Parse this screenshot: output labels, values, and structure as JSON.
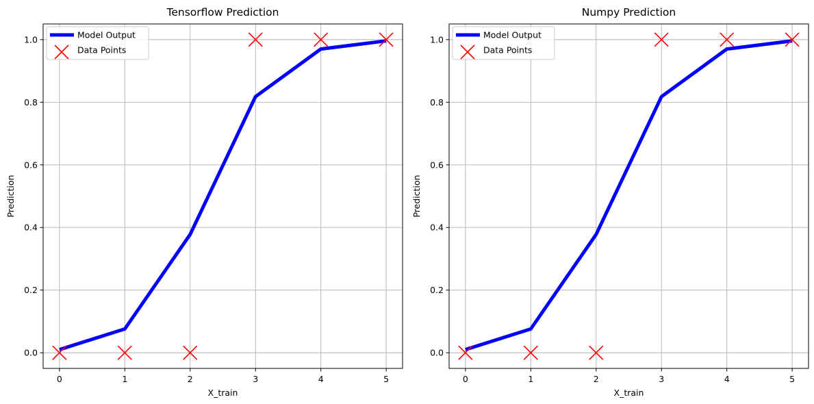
{
  "chart_data": [
    {
      "type": "line",
      "title": "Tensorflow Prediction",
      "xlabel": "X_train",
      "ylabel": "Prediction",
      "xlim": [
        -0.25,
        5.25
      ],
      "ylim": [
        -0.05,
        1.05
      ],
      "xticks": [
        "0",
        "1",
        "2",
        "3",
        "4",
        "5"
      ],
      "yticks": [
        "0.0",
        "0.2",
        "0.4",
        "0.6",
        "0.8",
        "1.0"
      ],
      "grid": true,
      "legend_position": "top-left",
      "series": [
        {
          "name": "Model Output",
          "kind": "line",
          "color": "#0000ff",
          "x": [
            0,
            1,
            2,
            3,
            4,
            5
          ],
          "y": [
            0.01,
            0.076,
            0.378,
            0.818,
            0.97,
            0.996
          ]
        },
        {
          "name": "Data Points",
          "kind": "scatter",
          "marker": "x",
          "color": "#ff0000",
          "x": [
            0,
            1,
            2,
            3,
            4,
            5
          ],
          "y": [
            0,
            0,
            0,
            1,
            1,
            1
          ]
        }
      ]
    },
    {
      "type": "line",
      "title": "Numpy Prediction",
      "xlabel": "X_train",
      "ylabel": "Prediction",
      "xlim": [
        -0.25,
        5.25
      ],
      "ylim": [
        -0.05,
        1.05
      ],
      "xticks": [
        "0",
        "1",
        "2",
        "3",
        "4",
        "5"
      ],
      "yticks": [
        "0.0",
        "0.2",
        "0.4",
        "0.6",
        "0.8",
        "1.0"
      ],
      "grid": true,
      "legend_position": "top-left",
      "series": [
        {
          "name": "Model Output",
          "kind": "line",
          "color": "#0000ff",
          "x": [
            0,
            1,
            2,
            3,
            4,
            5
          ],
          "y": [
            0.01,
            0.076,
            0.378,
            0.818,
            0.97,
            0.996
          ]
        },
        {
          "name": "Data Points",
          "kind": "scatter",
          "marker": "x",
          "color": "#ff0000",
          "x": [
            0,
            1,
            2,
            3,
            4,
            5
          ],
          "y": [
            0,
            0,
            0,
            1,
            1,
            1
          ]
        }
      ]
    }
  ]
}
